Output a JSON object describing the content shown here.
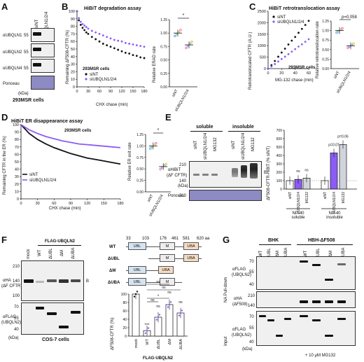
{
  "panels": {
    "A": {
      "letter": "A",
      "lanes": [
        "siNT",
        "siUBQLN1/2/4"
      ],
      "blots": [
        {
          "label": "αUBQLN1",
          "marker": "55"
        },
        {
          "label": "αUBQLN2",
          "marker": "55"
        },
        {
          "label": "αUBQLN4",
          "marker": "55"
        },
        {
          "label": "Ponceau",
          "marker": ""
        }
      ],
      "kda": "(kDa)",
      "cells": "293MSR cells"
    },
    "B": {
      "letter": "B",
      "title": "HiBiT degradation assay",
      "cells": "293MSR cells",
      "ylabel": "Remaining ΔF508-CFTR (%)",
      "xlabel": "CHX chase (min)",
      "ylabel2": "Relative ERAD rate",
      "legend": [
        "siNT",
        "siUBQLN1/2/4"
      ],
      "sig": "*",
      "bar_cats": [
        "siNT",
        "siUBQLN1/2/4"
      ]
    },
    "C": {
      "letter": "C",
      "title": "HiBiT retrotranslocation assay",
      "cells": "293MSR cells",
      "ylabel": "Retrotranslocated CFTR (A.U.)",
      "xlabel": "MG-132 chase (min)",
      "ylabel2": "Relative retrotranslocation rate",
      "legend": [
        "siNT",
        "siUBQLN1/2/4"
      ],
      "pval": "p=0.058",
      "bar_cats": [
        "siNT",
        "siUBQLN1/2/4"
      ]
    },
    "D": {
      "letter": "D",
      "title": "HiBiT ER disappearance assay",
      "cells": "293MSR cells",
      "ylabel": "Remaining CFTR in the ER (%)",
      "xlabel": "CHX chase (min)",
      "ylabel2": "Relative ER exit rate",
      "legend": [
        "siNT",
        "siUBQLN1/2/4"
      ],
      "sig": "*",
      "bar_cats": [
        "siNT",
        "siUBQLN1/2/4"
      ]
    },
    "E": {
      "letter": "E",
      "fractions": [
        "soluble",
        "insoluble"
      ],
      "lanes": [
        "siNT",
        "siUBQLN1/2/4",
        "MG132",
        "siNT",
        "siUBQLN1/2/4",
        "MG132"
      ],
      "blot_label": "αHiBiT",
      "blot_sub": "(ΔF CFTR)",
      "ponceau": "Ponceau",
      "markers": [
        "210",
        "140"
      ],
      "kda": "(kDa)",
      "band": "B",
      "ylabel": "ΔF508-CFTR-HiBiT (% siNT)",
      "groups": [
        "NP-40 soluble",
        "NP-40 insoluble"
      ],
      "pvals": [
        "p=0.07",
        "p=0.06"
      ],
      "ns": "ns"
    },
    "F": {
      "letter": "F",
      "construct": "FLAG-UBQLN2",
      "lanes": [
        "mock",
        "WT",
        "ΔUBL",
        "ΔM",
        "ΔUBA"
      ],
      "blot1_label": "αHA",
      "blot1_sub": "(ΔF CFTR)",
      "blot2_label": "αFLAG",
      "blot2_sub": "(UBQLN2)",
      "band": "B",
      "kda": "(kDa)",
      "cells": "COS-7 cells",
      "markers_top": [
        "210",
        "140",
        "100"
      ],
      "markers_bot": [
        "70",
        "55",
        "40"
      ],
      "domain_positions": [
        "33",
        "103",
        "176",
        "461",
        "581",
        "620 aa"
      ],
      "domain_names": [
        "UBL",
        "M",
        "UBA"
      ],
      "domain_rows": [
        "WT",
        "ΔUBL",
        "ΔM",
        "ΔUBA"
      ],
      "ylabel": "ΔF508-CFTR (%)",
      "xgroup": "FLAG-UBQLN2",
      "sig_labels": [
        "ns",
        "ns",
        "*",
        "ns",
        "***",
        "ns",
        "ns",
        "ns"
      ]
    },
    "G": {
      "letter": "G",
      "groups": [
        "BHK",
        "HBH-ΔF508"
      ],
      "lanes": [
        "WT",
        "ΔUBL",
        "ΔM",
        "ΔUBA",
        "WT",
        "ΔUBL",
        "ΔM",
        "ΔUBA"
      ],
      "side1": "NA Pull-down",
      "side2": "Input",
      "blots": [
        {
          "label": "αFLAG",
          "sub": "(UBQLN2)"
        },
        {
          "label": "αHA",
          "sub": "(ΔF508)"
        },
        {
          "label": "αFLAG",
          "sub": "(UBQLN2)"
        }
      ],
      "markers1": [
        "70",
        "55",
        "40"
      ],
      "markers2": [
        "210",
        "140"
      ],
      "markers3": [
        "70",
        "55",
        "40"
      ],
      "kda": "(kDa)",
      "treatment": "+ 10 μM MG132"
    }
  },
  "colors": {
    "siNT": "#111111",
    "siUBQLN": "#8b5cf6",
    "ponceau": "#8d8ac4"
  },
  "chart_data": [
    {
      "type": "scatter",
      "title": "HiBiT degradation assay",
      "xlabel": "CHX chase (min)",
      "ylabel": "Remaining ΔF508-CFTR (%)",
      "xlim": [
        0,
        180
      ],
      "ylim": [
        0,
        100
      ],
      "xticks": [
        0,
        30,
        60,
        90,
        120,
        150,
        180
      ],
      "yticks": [
        0,
        10,
        20,
        30,
        40,
        50,
        60,
        70,
        80,
        90,
        100
      ],
      "series": [
        {
          "name": "siNT",
          "x": [
            0,
            5,
            10,
            15,
            20,
            25,
            30,
            40,
            50,
            60,
            70,
            80,
            90,
            100,
            110,
            120,
            130,
            140,
            150,
            160,
            170,
            180
          ],
          "y": [
            100,
            88,
            82,
            78,
            75,
            72,
            70,
            66,
            63,
            60,
            57,
            55,
            53,
            51,
            49,
            47,
            45,
            44,
            42,
            41,
            39,
            38
          ]
        },
        {
          "name": "siUBQLN1/2/4",
          "x": [
            0,
            5,
            10,
            15,
            20,
            25,
            30,
            40,
            50,
            60,
            70,
            80,
            90,
            100,
            110,
            120,
            130,
            140,
            150,
            160,
            170,
            180
          ],
          "y": [
            100,
            91,
            86,
            83,
            81,
            79,
            77,
            74,
            72,
            70,
            68,
            66,
            64,
            62,
            61,
            60,
            58,
            57,
            56,
            55,
            54,
            53
          ]
        }
      ]
    },
    {
      "type": "bar",
      "ylabel": "Relative ERAD rate",
      "categories": [
        "siNT",
        "siUBQLN1/2/4"
      ],
      "values": [
        1.0,
        0.78
      ],
      "ylim": [
        0,
        1.25
      ],
      "yticks": [
        0,
        0.25,
        0.5,
        0.75,
        1.0,
        1.25
      ]
    },
    {
      "type": "scatter",
      "title": "HiBiT retrotranslocation assay",
      "xlabel": "MG-132 chase (min)",
      "ylabel": "Retrotranslocated CFTR (A.U.)",
      "xlim": [
        0,
        60
      ],
      "ylim": [
        0,
        2500
      ],
      "xticks": [
        0,
        20,
        40,
        60
      ],
      "yticks": [
        0,
        500,
        1000,
        1500,
        2000,
        2500
      ],
      "series": [
        {
          "name": "siNT",
          "x": [
            0,
            5,
            10,
            15,
            20,
            25,
            30,
            35,
            40,
            45,
            50,
            55,
            60
          ],
          "y": [
            0,
            150,
            330,
            520,
            700,
            870,
            1050,
            1220,
            1380,
            1560,
            1730,
            1900,
            2080
          ]
        },
        {
          "name": "siUBQLN1/2/4",
          "x": [
            0,
            5,
            10,
            15,
            20,
            25,
            30,
            35,
            40,
            45,
            50,
            55,
            60
          ],
          "y": [
            0,
            90,
            200,
            310,
            420,
            520,
            630,
            740,
            850,
            960,
            1060,
            1170,
            1280
          ]
        }
      ]
    },
    {
      "type": "bar",
      "ylabel": "Relative retrotranslocation rate",
      "categories": [
        "siNT",
        "siUBQLN1/2/4"
      ],
      "values": [
        1.0,
        0.6
      ],
      "ylim": [
        0,
        1.25
      ],
      "yticks": [
        0,
        0.25,
        0.5,
        0.75,
        1.0,
        1.25
      ]
    },
    {
      "type": "line",
      "title": "HiBiT ER disappearance assay",
      "xlabel": "CHX chase (min)",
      "ylabel": "Remaining CFTR in the ER (%)",
      "xlim": [
        0,
        180
      ],
      "ylim": [
        0,
        100
      ],
      "xticks": [
        0,
        30,
        60,
        90,
        120,
        150,
        180
      ],
      "yticks": [
        0,
        10,
        20,
        30,
        40,
        50,
        60,
        70,
        80,
        90,
        100
      ],
      "series": [
        {
          "name": "siNT",
          "x": [
            0,
            15,
            30,
            45,
            60,
            75,
            90,
            105,
            120,
            135,
            150,
            165,
            180
          ],
          "y": [
            100,
            88,
            80,
            74,
            69,
            65,
            61,
            58,
            55,
            53,
            51,
            49,
            47
          ]
        },
        {
          "name": "siUBQLN1/2/4",
          "x": [
            0,
            15,
            30,
            45,
            60,
            75,
            90,
            105,
            120,
            135,
            150,
            165,
            180
          ],
          "y": [
            100,
            93,
            88,
            84,
            81,
            78,
            76,
            74,
            73,
            72,
            71,
            70,
            69
          ]
        }
      ]
    },
    {
      "type": "bar",
      "ylabel": "Relative ER exit rate",
      "categories": [
        "siNT",
        "siUBQLN1/2/4"
      ],
      "values": [
        1.0,
        0.55
      ],
      "ylim": [
        0,
        1.25
      ],
      "yticks": [
        0,
        0.25,
        0.5,
        0.75,
        1.0,
        1.25
      ]
    },
    {
      "type": "bar",
      "ylabel": "ΔF508-CFTR-HiBiT (% siNT)",
      "categories": [
        "siNT",
        "siUBQLN1/2/4",
        "MG132",
        "siNT",
        "siUBQLN1/2/4",
        "MG132"
      ],
      "values": [
        100,
        115,
        130,
        100,
        430,
        530
      ],
      "ylim": [
        0,
        700
      ],
      "yticks": [
        0,
        100,
        200,
        300,
        400,
        500,
        600,
        700
      ]
    },
    {
      "type": "bar",
      "ylabel": "ΔF508-CFTR (%)",
      "categories": [
        "mock",
        "WT",
        "ΔUBL",
        "ΔM",
        "ΔUBA"
      ],
      "values": [
        100,
        13,
        45,
        75,
        55
      ],
      "ylim": [
        0,
        100
      ],
      "yticks": [
        0,
        20,
        40,
        60,
        80,
        100
      ]
    }
  ]
}
